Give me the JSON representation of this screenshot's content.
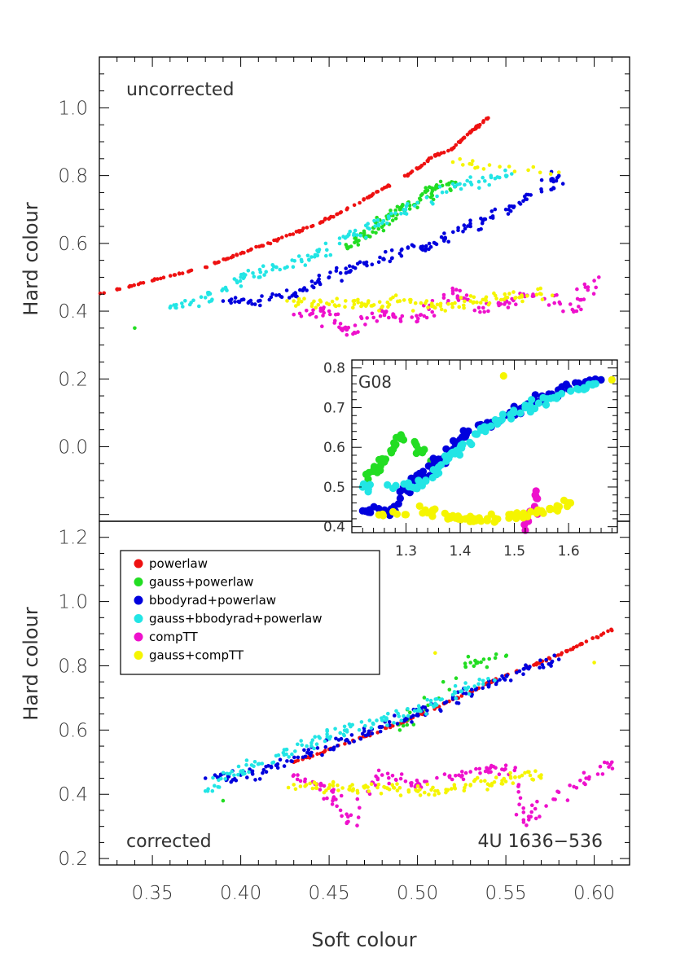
{
  "colors": {
    "powerlaw": "#ee1111",
    "gauss+powerlaw": "#22dd22",
    "bbodyrad+powerlaw": "#0000dd",
    "gauss+bbodyrad+powerlaw": "#22e5e5",
    "compTT": "#ee11cc",
    "gauss+compTT": "#f5f500"
  },
  "chart_data": [
    {
      "type": "scatter",
      "panel": "top",
      "annotation": "uncorrected",
      "xlabel": "",
      "ylabel": "Hard colour",
      "xlim": [
        0.32,
        0.62
      ],
      "ylim": [
        -0.22,
        1.15
      ],
      "yticks": [
        "0.0",
        "0.2",
        "0.4",
        "0.6",
        "0.8",
        "1.0"
      ],
      "series": [
        {
          "name": "powerlaw",
          "points": [
            [
              0.32,
              0.45
            ],
            [
              0.35,
              0.49
            ],
            [
              0.38,
              0.53
            ],
            [
              0.4,
              0.57
            ],
            [
              0.42,
              0.61
            ],
            [
              0.44,
              0.65
            ],
            [
              0.46,
              0.7
            ],
            [
              0.48,
              0.76
            ],
            [
              0.5,
              0.82
            ],
            [
              0.51,
              0.86
            ],
            [
              0.52,
              0.88
            ],
            [
              0.53,
              0.93
            ],
            [
              0.54,
              0.97
            ]
          ]
        },
        {
          "name": "gauss+powerlaw",
          "points": [
            [
              0.34,
              0.35
            ],
            [
              0.46,
              0.59
            ],
            [
              0.47,
              0.62
            ],
            [
              0.48,
              0.66
            ],
            [
              0.49,
              0.7
            ],
            [
              0.5,
              0.72
            ],
            [
              0.51,
              0.76
            ],
            [
              0.52,
              0.78
            ]
          ]
        },
        {
          "name": "bbodyrad+powerlaw",
          "points": [
            [
              0.39,
              0.43
            ],
            [
              0.41,
              0.43
            ],
            [
              0.43,
              0.45
            ],
            [
              0.45,
              0.5
            ],
            [
              0.47,
              0.54
            ],
            [
              0.49,
              0.57
            ],
            [
              0.51,
              0.6
            ],
            [
              0.53,
              0.65
            ],
            [
              0.55,
              0.7
            ],
            [
              0.57,
              0.76
            ],
            [
              0.58,
              0.8
            ]
          ]
        },
        {
          "name": "gauss+bbodyrad+powerlaw",
          "points": [
            [
              0.36,
              0.41
            ],
            [
              0.38,
              0.44
            ],
            [
              0.4,
              0.5
            ],
            [
              0.42,
              0.53
            ],
            [
              0.44,
              0.56
            ],
            [
              0.46,
              0.62
            ],
            [
              0.48,
              0.66
            ],
            [
              0.5,
              0.72
            ],
            [
              0.53,
              0.78
            ],
            [
              0.55,
              0.8
            ]
          ]
        },
        {
          "name": "compTT",
          "points": [
            [
              0.43,
              0.39
            ],
            [
              0.45,
              0.4
            ],
            [
              0.46,
              0.33
            ],
            [
              0.48,
              0.4
            ],
            [
              0.5,
              0.37
            ],
            [
              0.52,
              0.46
            ],
            [
              0.54,
              0.4
            ],
            [
              0.56,
              0.45
            ],
            [
              0.59,
              0.4
            ],
            [
              0.6,
              0.49
            ]
          ]
        },
        {
          "name": "gauss+compTT",
          "points": [
            [
              0.43,
              0.43
            ],
            [
              0.45,
              0.42
            ],
            [
              0.47,
              0.42
            ],
            [
              0.49,
              0.43
            ],
            [
              0.51,
              0.41
            ],
            [
              0.53,
              0.43
            ],
            [
              0.55,
              0.44
            ],
            [
              0.57,
              0.45
            ],
            [
              0.52,
              0.84
            ],
            [
              0.58,
              0.81
            ]
          ]
        }
      ]
    },
    {
      "type": "scatter",
      "panel": "inset",
      "annotation": "G08",
      "xlim": [
        1.2,
        1.69
      ],
      "ylim": [
        0.385,
        0.82
      ],
      "xticks": [
        "1.3",
        "1.4",
        "1.5",
        "1.6"
      ],
      "yticks": [
        "0.4",
        "0.5",
        "0.6",
        "0.7",
        "0.8"
      ],
      "series": [
        {
          "name": "gauss+powerlaw",
          "points": [
            [
              1.23,
              0.52
            ],
            [
              1.26,
              0.57
            ],
            [
              1.29,
              0.63
            ],
            [
              1.36,
              0.56
            ],
            [
              1.66,
              0.77
            ]
          ]
        },
        {
          "name": "bbodyrad+powerlaw",
          "points": [
            [
              1.22,
              0.44
            ],
            [
              1.28,
              0.44
            ],
            [
              1.3,
              0.5
            ],
            [
              1.33,
              0.53
            ],
            [
              1.36,
              0.57
            ],
            [
              1.4,
              0.62
            ],
            [
              1.45,
              0.66
            ],
            [
              1.5,
              0.69
            ],
            [
              1.55,
              0.72
            ],
            [
              1.6,
              0.75
            ],
            [
              1.66,
              0.77
            ]
          ]
        },
        {
          "name": "gauss+bbodyrad+powerlaw",
          "points": [
            [
              1.22,
              0.5
            ],
            [
              1.32,
              0.5
            ],
            [
              1.36,
              0.55
            ],
            [
              1.4,
              0.6
            ],
            [
              1.45,
              0.65
            ],
            [
              1.52,
              0.7
            ],
            [
              1.58,
              0.73
            ],
            [
              1.65,
              0.76
            ]
          ]
        },
        {
          "name": "compTT",
          "points": [
            [
              1.54,
              0.49
            ],
            [
              1.52,
              0.38
            ]
          ]
        },
        {
          "name": "gauss+compTT",
          "points": [
            [
              1.25,
              0.43
            ],
            [
              1.35,
              0.44
            ],
            [
              1.4,
              0.42
            ],
            [
              1.45,
              0.42
            ],
            [
              1.5,
              0.43
            ],
            [
              1.55,
              0.44
            ],
            [
              1.6,
              0.46
            ],
            [
              1.48,
              0.78
            ],
            [
              1.68,
              0.77
            ]
          ]
        }
      ]
    },
    {
      "type": "scatter",
      "panel": "bottom",
      "annotation": "corrected",
      "annotation_right": "4U 1636−536",
      "xlabel": "Soft colour",
      "ylabel": "Hard colour",
      "xlim": [
        0.32,
        0.62
      ],
      "ylim": [
        0.18,
        1.25
      ],
      "xticks": [
        "0.35",
        "0.40",
        "0.45",
        "0.50",
        "0.55",
        "0.60"
      ],
      "yticks": [
        "0.2",
        "0.4",
        "0.6",
        "0.8",
        "1.0",
        "1.2"
      ],
      "series": [
        {
          "name": "powerlaw",
          "points": [
            [
              0.43,
              0.5
            ],
            [
              0.45,
              0.54
            ],
            [
              0.47,
              0.58
            ],
            [
              0.49,
              0.62
            ],
            [
              0.51,
              0.67
            ],
            [
              0.53,
              0.72
            ],
            [
              0.55,
              0.77
            ],
            [
              0.57,
              0.81
            ],
            [
              0.59,
              0.86
            ],
            [
              0.61,
              0.91
            ]
          ]
        },
        {
          "name": "gauss+powerlaw",
          "points": [
            [
              0.39,
              0.38
            ],
            [
              0.49,
              0.6
            ],
            [
              0.53,
              0.81
            ],
            [
              0.55,
              0.83
            ]
          ]
        },
        {
          "name": "bbodyrad+powerlaw",
          "points": [
            [
              0.38,
              0.45
            ],
            [
              0.4,
              0.46
            ],
            [
              0.42,
              0.49
            ],
            [
              0.44,
              0.53
            ],
            [
              0.46,
              0.57
            ],
            [
              0.48,
              0.61
            ],
            [
              0.5,
              0.65
            ],
            [
              0.52,
              0.7
            ],
            [
              0.54,
              0.74
            ],
            [
              0.56,
              0.79
            ],
            [
              0.58,
              0.82
            ]
          ]
        },
        {
          "name": "gauss+bbodyrad+powerlaw",
          "points": [
            [
              0.38,
              0.41
            ],
            [
              0.4,
              0.47
            ],
            [
              0.42,
              0.52
            ],
            [
              0.44,
              0.56
            ],
            [
              0.46,
              0.6
            ],
            [
              0.48,
              0.63
            ],
            [
              0.5,
              0.66
            ],
            [
              0.52,
              0.71
            ],
            [
              0.54,
              0.76
            ]
          ]
        },
        {
          "name": "compTT",
          "points": [
            [
              0.43,
              0.46
            ],
            [
              0.45,
              0.42
            ],
            [
              0.46,
              0.31
            ],
            [
              0.48,
              0.46
            ],
            [
              0.5,
              0.43
            ],
            [
              0.53,
              0.47
            ],
            [
              0.55,
              0.49
            ],
            [
              0.56,
              0.32
            ],
            [
              0.59,
              0.42
            ],
            [
              0.61,
              0.5
            ]
          ]
        },
        {
          "name": "gauss+compTT",
          "points": [
            [
              0.43,
              0.43
            ],
            [
              0.45,
              0.42
            ],
            [
              0.47,
              0.42
            ],
            [
              0.49,
              0.42
            ],
            [
              0.51,
              0.41
            ],
            [
              0.53,
              0.43
            ],
            [
              0.55,
              0.44
            ],
            [
              0.57,
              0.46
            ],
            [
              0.51,
              0.84
            ],
            [
              0.6,
              0.81
            ]
          ]
        }
      ]
    }
  ],
  "legend": {
    "placement": "left, between panels",
    "entries": [
      "powerlaw",
      "gauss+powerlaw",
      "bbodyrad+powerlaw",
      "gauss+bbodyrad+powerlaw",
      "compTT",
      "gauss+compTT"
    ]
  }
}
